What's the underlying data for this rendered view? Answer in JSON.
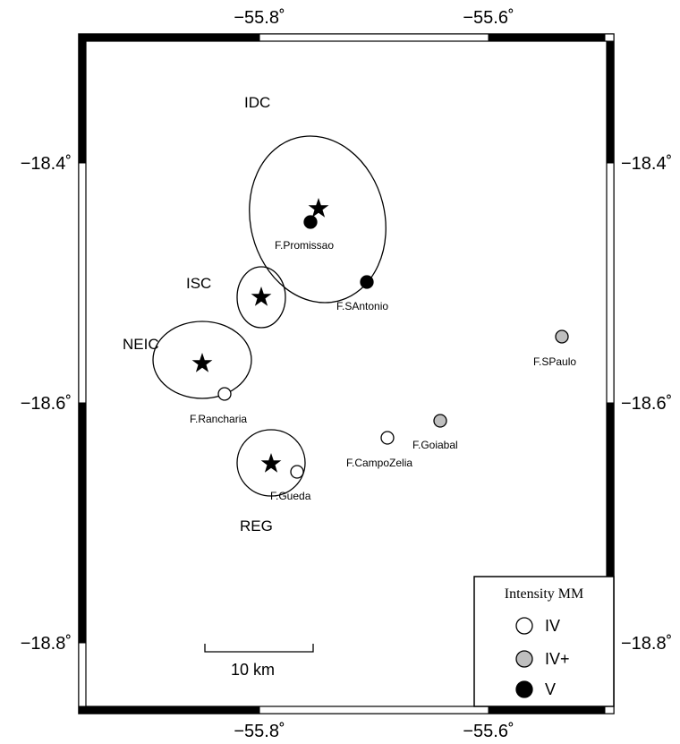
{
  "map": {
    "lon_ticks": [
      {
        "value": -55.8,
        "label": "−55.8˚"
      },
      {
        "value": -55.6,
        "label": "−55.6˚"
      }
    ],
    "lat_ticks": [
      {
        "value": -18.4,
        "label": "−18.4˚"
      },
      {
        "value": -18.6,
        "label": "−18.6˚"
      },
      {
        "value": -18.8,
        "label": "−18.8˚"
      }
    ],
    "epicenters": [
      {
        "agency": "IDC",
        "lon": -55.755,
        "lat": -18.44
      },
      {
        "agency": "ISC",
        "lon": -55.8,
        "lat": -18.51
      },
      {
        "agency": "NEIC",
        "lon": -55.85,
        "lat": -18.565
      },
      {
        "agency": "REG",
        "lon": -55.79,
        "lat": -18.65
      }
    ],
    "localities": [
      {
        "name": "F.Promissao",
        "lon": -55.76,
        "lat": -18.45,
        "intensity": "V"
      },
      {
        "name": "F.SAntonio",
        "lon": -55.7,
        "lat": -18.5,
        "intensity": "V"
      },
      {
        "name": "F.SPaulo",
        "lon": -55.54,
        "lat": -18.545,
        "intensity": "IV+"
      },
      {
        "name": "F.Rancharia",
        "lon": -55.83,
        "lat": -18.595,
        "intensity": "IV"
      },
      {
        "name": "F.Goiabal",
        "lon": -55.64,
        "lat": -18.615,
        "intensity": "IV+"
      },
      {
        "name": "F.CampoZelia",
        "lon": -55.68,
        "lat": -18.625,
        "intensity": "IV"
      },
      {
        "name": "F.Gueda",
        "lon": -55.77,
        "lat": -18.655,
        "intensity": "IV"
      }
    ],
    "scale_bar": {
      "label": "10 km"
    }
  },
  "legend": {
    "title": "Intensity MM",
    "items": [
      {
        "label": "IV",
        "color": "#ffffff"
      },
      {
        "label": "IV+",
        "color": "#bfbfbf"
      },
      {
        "label": "V",
        "color": "#000000"
      }
    ]
  }
}
